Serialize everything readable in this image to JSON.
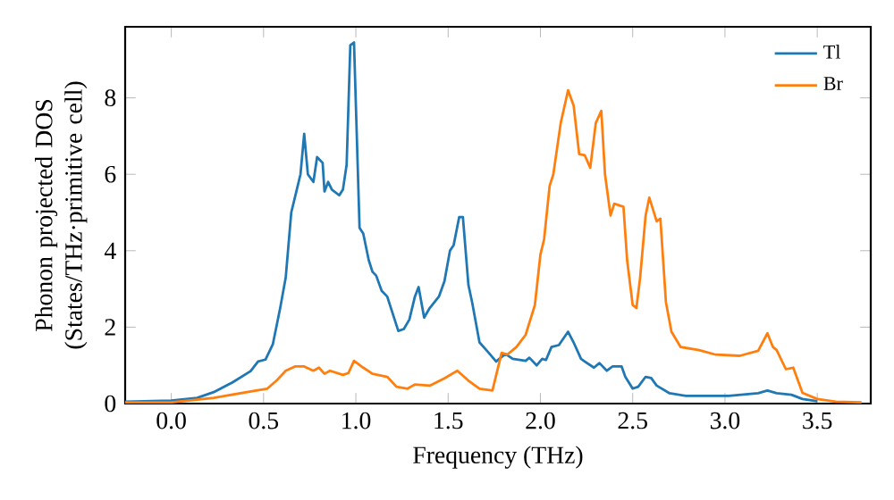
{
  "chart_data": {
    "type": "line",
    "xlabel": "Frequency (THz)",
    "ylabel": "Phonon projected DOS (States/THz·primitive cell)",
    "xlim": [
      -0.25,
      3.79
    ],
    "ylim": [
      0,
      9.86
    ],
    "xticks": [
      {
        "value": 0,
        "label": "0.0"
      },
      0.5,
      {
        "value": 1,
        "label": "1.0"
      },
      1.5,
      {
        "value": 2,
        "label": "2.0"
      },
      2.5,
      {
        "value": 3,
        "label": "3.0"
      },
      3.5
    ],
    "yticks": [
      0,
      2,
      4,
      6,
      8
    ],
    "legend": "top right",
    "grid": false,
    "marker": "none",
    "line_style": "solid",
    "series": [
      {
        "name": "Tl",
        "color": "#1f77b4",
        "x": [
          -0.25,
          0.0,
          0.14,
          0.23,
          0.33,
          0.43,
          0.47,
          0.51,
          0.55,
          0.59,
          0.62,
          0.65,
          0.68,
          0.7,
          0.72,
          0.74,
          0.77,
          0.79,
          0.82,
          0.83,
          0.85,
          0.87,
          0.91,
          0.93,
          0.95,
          0.97,
          0.99,
          1.02,
          1.04,
          1.07,
          1.09,
          1.11,
          1.14,
          1.17,
          1.2,
          1.23,
          1.26,
          1.29,
          1.32,
          1.34,
          1.37,
          1.4,
          1.45,
          1.48,
          1.51,
          1.53,
          1.56,
          1.58,
          1.61,
          1.63,
          1.67,
          1.72,
          1.76,
          1.81,
          1.85,
          1.92,
          1.94,
          1.98,
          2.01,
          2.03,
          2.06,
          2.1,
          2.15,
          2.18,
          2.22,
          2.24,
          2.29,
          2.32,
          2.36,
          2.39,
          2.44,
          2.46,
          2.5,
          2.53,
          2.57,
          2.6,
          2.63,
          2.7,
          2.79,
          3.02,
          3.18,
          3.23,
          3.28,
          3.36,
          3.42,
          3.5
        ],
        "values": [
          0.05,
          0.08,
          0.15,
          0.3,
          0.55,
          0.85,
          1.1,
          1.15,
          1.55,
          2.5,
          3.3,
          5.0,
          5.6,
          6.0,
          7.06,
          6.0,
          5.8,
          6.45,
          6.3,
          5.55,
          5.8,
          5.6,
          5.45,
          5.6,
          6.25,
          9.38,
          9.45,
          4.6,
          4.45,
          3.75,
          3.45,
          3.35,
          2.95,
          2.8,
          2.35,
          1.9,
          1.95,
          2.2,
          2.8,
          3.05,
          2.25,
          2.5,
          2.8,
          3.2,
          4.0,
          4.15,
          4.88,
          4.88,
          3.1,
          2.65,
          1.6,
          1.33,
          1.1,
          1.3,
          1.17,
          1.12,
          1.2,
          1.0,
          1.17,
          1.14,
          1.48,
          1.53,
          1.88,
          1.6,
          1.17,
          1.1,
          0.94,
          1.06,
          0.86,
          0.97,
          0.97,
          0.7,
          0.39,
          0.44,
          0.7,
          0.67,
          0.47,
          0.27,
          0.2,
          0.2,
          0.27,
          0.34,
          0.27,
          0.23,
          0.12,
          0.06
        ]
      },
      {
        "name": "Br",
        "color": "#ff7f0e",
        "x": [
          -0.25,
          0.0,
          0.23,
          0.46,
          0.52,
          0.57,
          0.62,
          0.67,
          0.72,
          0.77,
          0.8,
          0.83,
          0.86,
          0.93,
          0.96,
          0.99,
          1.04,
          1.09,
          1.17,
          1.22,
          1.28,
          1.32,
          1.4,
          1.48,
          1.55,
          1.61,
          1.67,
          1.74,
          1.79,
          1.82,
          1.87,
          1.92,
          1.97,
          2.0,
          2.02,
          2.05,
          2.07,
          2.11,
          2.15,
          2.18,
          2.21,
          2.24,
          2.27,
          2.3,
          2.33,
          2.35,
          2.38,
          2.4,
          2.45,
          2.47,
          2.5,
          2.52,
          2.54,
          2.57,
          2.59,
          2.63,
          2.65,
          2.68,
          2.71,
          2.76,
          2.86,
          2.95,
          3.08,
          3.18,
          3.23,
          3.26,
          3.28,
          3.33,
          3.37,
          3.42,
          3.5,
          3.6,
          3.74
        ],
        "values": [
          0.03,
          0.03,
          0.15,
          0.34,
          0.39,
          0.6,
          0.86,
          0.97,
          0.97,
          0.86,
          0.94,
          0.78,
          0.86,
          0.75,
          0.8,
          1.12,
          0.94,
          0.78,
          0.7,
          0.44,
          0.39,
          0.5,
          0.47,
          0.66,
          0.86,
          0.6,
          0.39,
          0.34,
          1.33,
          1.28,
          1.48,
          1.8,
          2.58,
          3.9,
          4.3,
          5.7,
          6.0,
          7.34,
          8.2,
          7.8,
          6.53,
          6.5,
          6.17,
          7.34,
          7.66,
          6.0,
          4.92,
          5.23,
          5.15,
          3.75,
          2.58,
          2.5,
          3.28,
          4.92,
          5.39,
          4.77,
          4.84,
          2.66,
          1.88,
          1.48,
          1.4,
          1.28,
          1.25,
          1.38,
          1.84,
          1.48,
          1.4,
          0.9,
          0.94,
          0.28,
          0.12,
          0.05,
          0.03
        ]
      }
    ]
  }
}
